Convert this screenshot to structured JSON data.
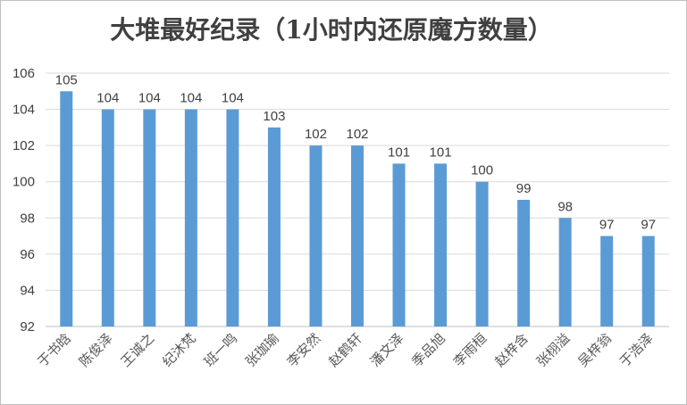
{
  "chart_data": {
    "type": "bar",
    "title": "大堆最好纪录（1小时内还原魔方数量）",
    "xlabel": "",
    "ylabel": "",
    "ylim": [
      92,
      106
    ],
    "ytick_step": 2,
    "grid": true,
    "legend": "none",
    "bar_color": "#5b9bd5",
    "categories": [
      "于书晗",
      "陈俊泽",
      "王诚之",
      "纪沐梵",
      "班一鸣",
      "张珈瑜",
      "李安然",
      "赵鹤轩",
      "潘文泽",
      "季品旭",
      "李雨桓",
      "赵梓含",
      "张栩溢",
      "吴梓翁",
      "于浩泽"
    ],
    "values": [
      105,
      104,
      104,
      104,
      104,
      103,
      102,
      102,
      101,
      101,
      100,
      99,
      98,
      97,
      97
    ]
  }
}
